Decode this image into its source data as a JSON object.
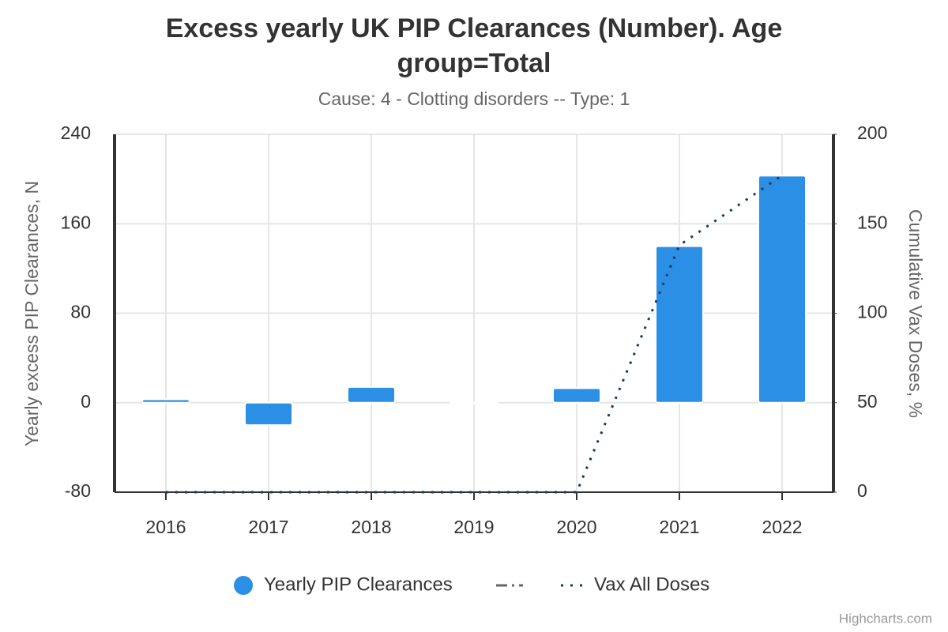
{
  "chart_data": {
    "type": "bar",
    "title": "Excess yearly UK PIP Clearances (Number). Age group=Total",
    "subtitle": "Cause: 4 - Clotting disorders -- Type: 1",
    "y_label": "Yearly excess PIP Clearances, N",
    "y2_label": "Cumulative Vax Doses, %",
    "credits": "Highcharts.com",
    "categories": [
      "2016",
      "2017",
      "2018",
      "2019",
      "2020",
      "2021",
      "2022"
    ],
    "series": [
      {
        "name": "Yearly PIP Clearances",
        "type": "bar",
        "color": "#2b8fe6",
        "values": [
          3,
          -20,
          14,
          0,
          13,
          140,
          203
        ]
      },
      {
        "name": "Vax All Doses",
        "type": "line",
        "axis": "y2",
        "color": "#173a5e",
        "values": [
          0,
          0,
          0,
          0,
          0,
          138,
          177
        ]
      }
    ],
    "ylim": [
      -80,
      240
    ],
    "yticks": [
      -80,
      0,
      80,
      160,
      240
    ],
    "y2lim": [
      0,
      200
    ],
    "y2ticks": [
      0,
      50,
      100,
      150,
      200
    ],
    "grid": true
  }
}
